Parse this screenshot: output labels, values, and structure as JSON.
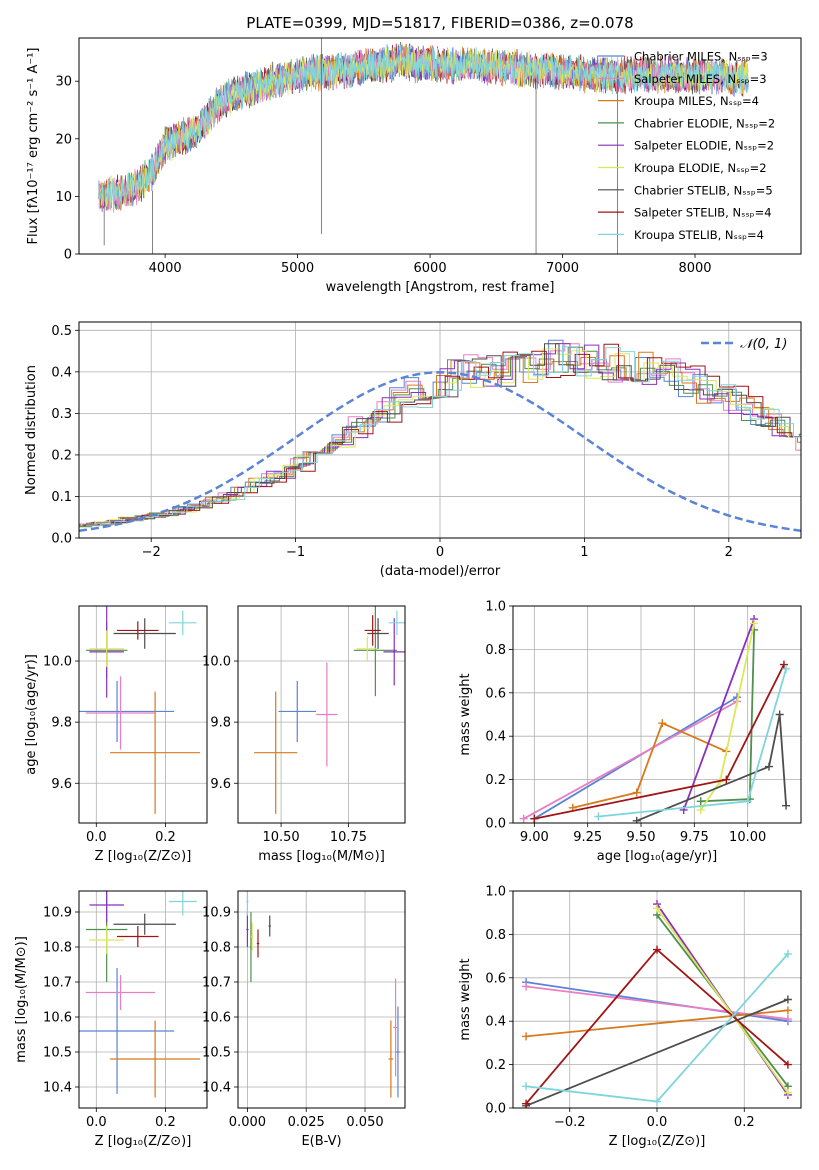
{
  "colors": [
    "#5b84d6",
    "#e87ec4",
    "#d8791c",
    "#4f8f4f",
    "#8c2fbd",
    "#dbe85a",
    "#4d4d4d",
    "#a01414",
    "#7ed6dc"
  ],
  "chart_data": [
    {
      "id": "spectrum",
      "type": "line",
      "title": "PLATE=0399, MJD=51817, FIBERID=0386, z=0.078",
      "xlabel": "wavelength [Angstrom, rest frame]",
      "ylabel": "Flux [fλ10⁻¹⁷ erg cm⁻² s⁻¹ A⁻¹]",
      "xlim": [
        3350,
        8800
      ],
      "ylim": [
        0,
        37.5
      ],
      "xticks": [
        "4000",
        "5000",
        "6000",
        "7000",
        "8000"
      ],
      "yticks": [
        "0",
        "10",
        "20",
        "30"
      ],
      "continuum": {
        "x": [
          3500,
          3600,
          3700,
          3800,
          3900,
          4000,
          4100,
          4200,
          4300,
          4400,
          4500,
          4600,
          4700,
          4800,
          4900,
          5000,
          5100,
          5200,
          5300,
          5400,
          5500,
          5600,
          5700,
          5800,
          5900,
          6000,
          6100,
          6200,
          6300,
          6400,
          6500,
          6600,
          6700,
          6800,
          6900,
          7000,
          7100,
          7200,
          7300,
          7400,
          7500,
          7600,
          7700,
          7800,
          7900,
          8000,
          8100,
          8200,
          8300,
          8400
        ],
        "y": [
          10,
          10.5,
          11,
          12,
          14,
          19,
          20,
          21,
          23,
          26,
          27.5,
          28.5,
          29,
          30,
          30.5,
          31,
          31.5,
          31.5,
          32,
          32,
          32.5,
          33,
          33,
          33.5,
          33,
          33,
          33,
          32.5,
          33,
          32.5,
          32.5,
          32.5,
          32,
          32,
          32,
          31.5,
          31.5,
          31,
          31,
          31,
          31,
          31,
          31,
          31,
          31,
          31,
          31,
          31,
          30.5,
          30.5
        ]
      },
      "spikes": [
        {
          "x": 5180,
          "y": 3.5,
          "top": 37.5
        },
        {
          "x": 3905,
          "y": 0,
          "top": 11
        },
        {
          "x": 6800,
          "y": 0,
          "top": 30
        },
        {
          "x": 7415,
          "y": 0,
          "top": 31
        },
        {
          "x": 3540,
          "y": 1.5,
          "top": 12
        }
      ],
      "legend": {
        "placement": "top-right",
        "entries": [
          "Chabrier MILES, Nₛₛₚ=3",
          "Salpeter MILES, Nₛₛₚ=3",
          "Kroupa MILES, Nₛₛₚ=4",
          "Chabrier ELODIE, Nₛₛₚ=2",
          "Salpeter ELODIE, Nₛₛₚ=2",
          "Kroupa ELODIE, Nₛₛₚ=2",
          "Chabrier STELIB, Nₛₛₚ=5",
          "Salpeter STELIB, Nₛₛₚ=4",
          "Kroupa STELIB, Nₛₛₚ=4"
        ]
      }
    },
    {
      "id": "residuals",
      "type": "histogram",
      "xlabel": "(data-model)/error",
      "ylabel": "Normed distribution",
      "xlim": [
        -2.5,
        2.5
      ],
      "ylim": [
        0,
        0.52
      ],
      "xticks": [
        "−2",
        "−1",
        "0",
        "1",
        "2"
      ],
      "yticks": [
        "0.0",
        "0.1",
        "0.2",
        "0.3",
        "0.4",
        "0.5"
      ],
      "grid": true,
      "legend": {
        "placement": "top-right",
        "entry": "𝒩(0, 1)"
      },
      "bin_start": -2.5,
      "bin_width": 0.1,
      "base_values": [
        0.03,
        0.035,
        0.04,
        0.045,
        0.05,
        0.055,
        0.06,
        0.07,
        0.08,
        0.09,
        0.1,
        0.115,
        0.13,
        0.145,
        0.16,
        0.18,
        0.2,
        0.22,
        0.245,
        0.27,
        0.29,
        0.31,
        0.33,
        0.35,
        0.365,
        0.38,
        0.39,
        0.4,
        0.405,
        0.41,
        0.415,
        0.42,
        0.425,
        0.43,
        0.43,
        0.43,
        0.425,
        0.42,
        0.415,
        0.41,
        0.4,
        0.39,
        0.375,
        0.36,
        0.345,
        0.33,
        0.31,
        0.29,
        0.27,
        0.25,
        0.23,
        0.21,
        0.19,
        0.17,
        0.15,
        0.13,
        0.115,
        0.1,
        0.09,
        0.08,
        0.07,
        0.06,
        0.055,
        0.05,
        0.045,
        0.04,
        0.035,
        0.03
      ]
    },
    {
      "id": "age-vs-z",
      "type": "errorbar",
      "xlabel": "Z [log₁₀(Z/Z⊙)]",
      "ylabel": "age  [log₁₀(age/yr)]",
      "xlim": [
        -0.05,
        0.32
      ],
      "ylim": [
        9.47,
        10.18
      ],
      "xticks": [
        "0.0",
        "0.2"
      ],
      "yticks": [
        "9.6",
        "9.8",
        "10.0"
      ],
      "grid": true,
      "points": [
        {
          "x": 0.06,
          "y": 9.835,
          "xe": 0.165,
          "ye": 0.1,
          "c": 0
        },
        {
          "x": 0.07,
          "y": 9.83,
          "xe": 0.1,
          "ye": 0.12,
          "c": 1
        },
        {
          "x": 0.17,
          "y": 9.7,
          "xe": 0.13,
          "ye": 0.2,
          "c": 2
        },
        {
          "x": 0.03,
          "y": 10.035,
          "xe": 0.06,
          "ye": 0.09,
          "c": 3
        },
        {
          "x": 0.03,
          "y": 10.03,
          "xe": 0.05,
          "ye": 0.15,
          "c": 4
        },
        {
          "x": 0.03,
          "y": 10.04,
          "xe": 0.05,
          "ye": 0.06,
          "c": 5
        },
        {
          "x": 0.14,
          "y": 10.09,
          "xe": 0.09,
          "ye": 0.05,
          "c": 6
        },
        {
          "x": 0.12,
          "y": 10.1,
          "xe": 0.06,
          "ye": 0.03,
          "c": 7
        },
        {
          "x": 0.25,
          "y": 10.125,
          "xe": 0.04,
          "ye": 0.04,
          "c": 8
        }
      ]
    },
    {
      "id": "age-vs-mass",
      "type": "errorbar",
      "xlabel": "mass [log₁₀(M/M⊙)]",
      "xlim": [
        10.34,
        10.96
      ],
      "ylim": [
        9.47,
        10.18
      ],
      "xticks": [
        "10.50",
        "10.75"
      ],
      "yticks": [
        "9.6",
        "9.8",
        "10.0"
      ],
      "grid": true,
      "points": [
        {
          "x": 10.56,
          "y": 9.835,
          "xe": 0.07,
          "ye": 0.1,
          "c": 0
        },
        {
          "x": 10.67,
          "y": 9.825,
          "xe": 0.04,
          "ye": 0.17,
          "c": 1
        },
        {
          "x": 10.48,
          "y": 9.7,
          "xe": 0.08,
          "ye": 0.2,
          "c": 2
        },
        {
          "x": 10.85,
          "y": 10.035,
          "xe": 0.08,
          "ye": 0.15,
          "c": 3
        },
        {
          "x": 10.92,
          "y": 10.03,
          "xe": 0.04,
          "ye": 0.11,
          "c": 4
        },
        {
          "x": 10.82,
          "y": 10.04,
          "xe": 0.04,
          "ye": 0.04,
          "c": 5
        },
        {
          "x": 10.86,
          "y": 10.09,
          "xe": 0.04,
          "ye": 0.05,
          "c": 6
        },
        {
          "x": 10.84,
          "y": 10.1,
          "xe": 0.03,
          "ye": 0.05,
          "c": 7
        },
        {
          "x": 10.93,
          "y": 10.125,
          "xe": 0.03,
          "ye": 0.04,
          "c": 8
        }
      ]
    },
    {
      "id": "weight-vs-age",
      "type": "line",
      "xlabel": "age  [log₁₀(age/yr)]",
      "ylabel": "mass weight",
      "xlim": [
        8.9,
        10.25
      ],
      "ylim": [
        0,
        1.0
      ],
      "xticks": [
        "9.00",
        "9.25",
        "9.50",
        "9.75",
        "10.00"
      ],
      "yticks": [
        "0.0",
        "0.2",
        "0.4",
        "0.6",
        "0.8",
        "1.0"
      ],
      "grid": true,
      "series": [
        {
          "c": 0,
          "x": [
            9.0,
            9.95
          ],
          "y": [
            0.02,
            0.58
          ]
        },
        {
          "c": 1,
          "x": [
            8.95,
            9.95
          ],
          "y": [
            0.02,
            0.56
          ]
        },
        {
          "c": 2,
          "x": [
            9.18,
            9.48,
            9.6,
            9.9
          ],
          "y": [
            0.07,
            0.14,
            0.46,
            0.33
          ]
        },
        {
          "c": 3,
          "x": [
            9.78,
            10.01,
            10.03
          ],
          "y": [
            0.1,
            0.11,
            0.89
          ]
        },
        {
          "c": 4,
          "x": [
            9.7,
            10.03
          ],
          "y": [
            0.06,
            0.94
          ]
        },
        {
          "c": 5,
          "x": [
            9.78,
            9.87,
            10.03
          ],
          "y": [
            0.06,
            0.19,
            0.92
          ]
        },
        {
          "c": 6,
          "x": [
            9.48,
            10.1,
            10.15,
            10.18
          ],
          "y": [
            0.01,
            0.26,
            0.5,
            0.08
          ]
        },
        {
          "c": 7,
          "x": [
            9.0,
            9.9,
            10.17
          ],
          "y": [
            0.02,
            0.2,
            0.73
          ]
        },
        {
          "c": 8,
          "x": [
            9.3,
            10.0,
            10.18
          ],
          "y": [
            0.03,
            0.1,
            0.71
          ]
        }
      ]
    },
    {
      "id": "mass-vs-z",
      "type": "errorbar",
      "xlabel": "Z [log₁₀(Z/Z⊙)]",
      "ylabel": "mass [log₁₀(M/M⊙)]",
      "xlim": [
        -0.05,
        0.32
      ],
      "ylim": [
        10.34,
        10.96
      ],
      "xticks": [
        "0.0",
        "0.2"
      ],
      "yticks": [
        "10.4",
        "10.5",
        "10.6",
        "10.7",
        "10.8",
        "10.9"
      ],
      "grid": true,
      "points": [
        {
          "x": 0.06,
          "y": 10.56,
          "xe": 0.165,
          "ye": 0.18,
          "c": 0
        },
        {
          "x": 0.07,
          "y": 10.67,
          "xe": 0.1,
          "ye": 0.05,
          "c": 1
        },
        {
          "x": 0.17,
          "y": 10.48,
          "xe": 0.13,
          "ye": 0.11,
          "c": 2
        },
        {
          "x": 0.03,
          "y": 10.85,
          "xe": 0.06,
          "ye": 0.15,
          "c": 3
        },
        {
          "x": 0.03,
          "y": 10.92,
          "xe": 0.05,
          "ye": 0.05,
          "c": 4
        },
        {
          "x": 0.03,
          "y": 10.82,
          "xe": 0.05,
          "ye": 0.04,
          "c": 5
        },
        {
          "x": 0.14,
          "y": 10.865,
          "xe": 0.09,
          "ye": 0.03,
          "c": 6
        },
        {
          "x": 0.12,
          "y": 10.83,
          "xe": 0.06,
          "ye": 0.03,
          "c": 7
        },
        {
          "x": 0.25,
          "y": 10.93,
          "xe": 0.04,
          "ye": 0.04,
          "c": 8
        }
      ]
    },
    {
      "id": "mass-vs-ebv",
      "type": "errorbar",
      "xlabel": "E(B-V)",
      "xlim": [
        -0.004,
        0.067
      ],
      "ylim": [
        10.34,
        10.96
      ],
      "xticks": [
        "0.000",
        "0.025",
        "0.050"
      ],
      "yticks": [
        "10.4",
        "10.5",
        "10.6",
        "10.7",
        "10.8",
        "10.9"
      ],
      "grid": true,
      "points": [
        {
          "x": 0.064,
          "y": 10.5,
          "xe": 0.001,
          "ye": 0.13,
          "c": 0
        },
        {
          "x": 0.063,
          "y": 10.57,
          "xe": 0.001,
          "ye": 0.14,
          "c": 1
        },
        {
          "x": 0.061,
          "y": 10.48,
          "xe": 0.001,
          "ye": 0.11,
          "c": 2
        },
        {
          "x": 0.0015,
          "y": 10.8,
          "xe": 0.0005,
          "ye": 0.1,
          "c": 3
        },
        {
          "x": 0.0,
          "y": 10.85,
          "xe": 0.0005,
          "ye": 0.05,
          "c": 4
        },
        {
          "x": 0.002,
          "y": 10.83,
          "xe": 0.0005,
          "ye": 0.04,
          "c": 5
        },
        {
          "x": 0.0095,
          "y": 10.86,
          "xe": 0.0005,
          "ye": 0.03,
          "c": 6
        },
        {
          "x": 0.0045,
          "y": 10.81,
          "xe": 0.0005,
          "ye": 0.04,
          "c": 7
        },
        {
          "x": 0.0,
          "y": 10.93,
          "xe": 0.0005,
          "ye": 0.04,
          "c": 8
        }
      ]
    },
    {
      "id": "weight-vs-z",
      "type": "line",
      "xlabel": "Z [log₁₀(Z/Z⊙)]",
      "ylabel": "mass weight",
      "xlim": [
        -0.33,
        0.33
      ],
      "ylim": [
        0,
        1.0
      ],
      "xticks": [
        "−0.2",
        "0.0",
        "0.2"
      ],
      "yticks": [
        "0.0",
        "0.2",
        "0.4",
        "0.6",
        "0.8",
        "1.0"
      ],
      "grid": true,
      "series": [
        {
          "c": 0,
          "x": [
            -0.3,
            0.3
          ],
          "y": [
            0.58,
            0.4
          ]
        },
        {
          "c": 1,
          "x": [
            -0.3,
            0.3
          ],
          "y": [
            0.56,
            0.41
          ]
        },
        {
          "c": 2,
          "x": [
            -0.3,
            0.3
          ],
          "y": [
            0.33,
            0.45
          ]
        },
        {
          "c": 3,
          "x": [
            0.0,
            0.3
          ],
          "y": [
            0.89,
            0.1
          ]
        },
        {
          "c": 4,
          "x": [
            0.0,
            0.3
          ],
          "y": [
            0.94,
            0.06
          ]
        },
        {
          "c": 5,
          "x": [
            0.0,
            0.3
          ],
          "y": [
            0.92,
            0.07
          ]
        },
        {
          "c": 6,
          "x": [
            -0.3,
            0.3
          ],
          "y": [
            0.01,
            0.5
          ]
        },
        {
          "c": 7,
          "x": [
            -0.3,
            0.0,
            0.3
          ],
          "y": [
            0.02,
            0.73,
            0.2
          ]
        },
        {
          "c": 8,
          "x": [
            -0.3,
            0.0,
            0.3
          ],
          "y": [
            0.1,
            0.03,
            0.71
          ]
        }
      ]
    }
  ]
}
